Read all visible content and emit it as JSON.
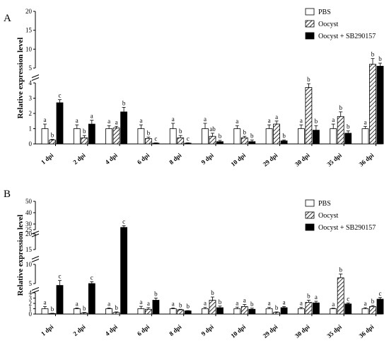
{
  "chart_data": [
    {
      "panel": "A",
      "type": "bar",
      "ylabel": "Relative expression level",
      "categories": [
        "1 dpi",
        "2 dpi",
        "4 dpi",
        "6 dpi",
        "8 dpi",
        "9 dpi",
        "10 dpi",
        "29 dpi",
        "30 dpi",
        "35 dpi",
        "36 dpi"
      ],
      "axis": {
        "segments": [
          {
            "range": [
              0,
              4
            ],
            "ticks": [
              0,
              1,
              2,
              3,
              4
            ]
          },
          {
            "range": [
              5,
              20
            ],
            "ticks": [
              5,
              10,
              15,
              20
            ]
          }
        ]
      },
      "series": [
        {
          "name": "PBS",
          "pattern": "open",
          "values": [
            1.0,
            1.0,
            1.0,
            1.0,
            1.0,
            1.0,
            1.0,
            1.0,
            1.0,
            1.0,
            1.0
          ],
          "errors": [
            0.3,
            0.25,
            0.2,
            0.25,
            0.35,
            0.35,
            0.2,
            0.25,
            0.25,
            0.3,
            0.15
          ],
          "letters": [
            "a",
            "a",
            "a",
            "a",
            "a",
            "a",
            "a",
            "a",
            "a",
            "a",
            "a"
          ]
        },
        {
          "name": "Oocyst",
          "pattern": "hatched",
          "values": [
            0.25,
            0.4,
            1.05,
            0.35,
            0.4,
            0.5,
            0.4,
            1.3,
            3.7,
            1.8,
            6.0
          ],
          "errors": [
            0.05,
            0.15,
            0.1,
            0.1,
            0.15,
            0.2,
            0.1,
            0.2,
            0.25,
            0.3,
            1.5
          ],
          "letters": [
            "b",
            "b",
            "a",
            "b",
            "b",
            "ab",
            "b",
            "a",
            "b",
            "b",
            "b"
          ]
        },
        {
          "name": "Oocyst + SB290157",
          "pattern": "solid",
          "values": [
            2.7,
            1.3,
            2.1,
            0.05,
            0.05,
            0.15,
            0.15,
            0.2,
            0.9,
            0.7,
            5.5
          ],
          "errors": [
            0.2,
            0.25,
            0.3,
            0.02,
            0.02,
            0.08,
            0.1,
            0.05,
            0.3,
            0.15,
            0.8
          ],
          "letters": [
            "c",
            "a",
            "b",
            "c",
            "c",
            "b",
            "b",
            "b",
            "b",
            "b",
            "b"
          ]
        }
      ],
      "legend": "top-right"
    },
    {
      "panel": "B",
      "type": "bar",
      "ylabel": "Relative expression level",
      "categories": [
        "1 dpi",
        "2 dpi",
        "4 dpi",
        "6 dpi",
        "8 dpi",
        "9 dpi",
        "10 dpi",
        "29 dpi",
        "30 dpi",
        "35 dpi",
        "36 dpi"
      ],
      "axis": {
        "segments": [
          {
            "range": [
              0,
              4
            ],
            "ticks": [
              0,
              1,
              2,
              3,
              4
            ]
          },
          {
            "range": [
              5,
              10
            ],
            "ticks": [
              5,
              10
            ]
          },
          {
            "range": [
              15,
              20
            ],
            "ticks": [
              15,
              20
            ]
          },
          {
            "range": [
              25,
              50
            ],
            "ticks": [
              25,
              30,
              40,
              50
            ]
          }
        ]
      },
      "series": [
        {
          "name": "PBS",
          "pattern": "open",
          "values": [
            1.0,
            1.0,
            1.0,
            1.0,
            1.0,
            1.0,
            1.0,
            1.0,
            1.0,
            1.0,
            1.0
          ],
          "errors": [
            0.4,
            0.15,
            0.15,
            0.45,
            0.15,
            0.25,
            0.3,
            0.25,
            0.25,
            0.1,
            0.2
          ],
          "letters": [
            "a",
            "a",
            "a",
            "a",
            "a",
            "a",
            "a",
            "a",
            "a",
            "a",
            "a"
          ]
        },
        {
          "name": "Oocyst",
          "pattern": "hatched",
          "values": [
            0.1,
            0.2,
            0.3,
            0.9,
            0.8,
            2.6,
            1.4,
            0.3,
            2.2,
            6.5,
            1.4
          ],
          "errors": [
            0.05,
            0.1,
            0.1,
            0.3,
            0.1,
            0.6,
            0.4,
            0.1,
            0.4,
            1.0,
            0.2
          ],
          "letters": [
            "b",
            "b",
            "b",
            "a",
            "b",
            "b",
            "a",
            "b",
            "b",
            "b",
            "b"
          ]
        },
        {
          "name": "Oocyst + SB290157",
          "pattern": "solid",
          "values": [
            4.8,
            5.0,
            27.0,
            2.6,
            0.6,
            1.2,
            0.9,
            1.2,
            2.1,
            1.9,
            2.8
          ],
          "errors": [
            1.0,
            0.5,
            1.5,
            0.4,
            0.05,
            0.3,
            0.2,
            0.2,
            0.3,
            0.2,
            0.3
          ],
          "letters": [
            "c",
            "c",
            "c",
            "b",
            "b",
            "b",
            "b",
            "a",
            "a",
            "c",
            "c"
          ]
        }
      ],
      "legend": "top-right"
    }
  ]
}
